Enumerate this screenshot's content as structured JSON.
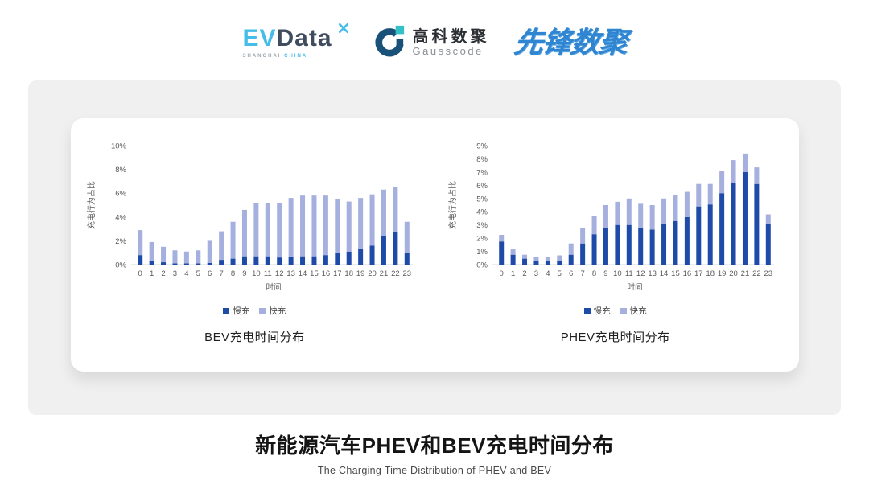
{
  "header": {
    "evdata": {
      "ev": "EV",
      "data": "Data",
      "sub_left": "SHANGHAI",
      "sub_right": "CHINA",
      "accent_color": "#45BDE8",
      "text_color": "#3E4C5E"
    },
    "gausscode": {
      "cn": "高科数聚",
      "en": "Gausscode",
      "ring_color": "#1A5178",
      "square_color": "#33C1C6"
    },
    "xianfeng": {
      "text": "先锋数聚",
      "color": "#2F85D2"
    }
  },
  "chart_data": [
    {
      "type": "bar",
      "stacked": true,
      "title": "BEV充电时间分布",
      "xlabel": "时间",
      "ylabel": "充电行为占比",
      "ylim": [
        0,
        10
      ],
      "ytick_step": 2,
      "grid": false,
      "legend_position": "bottom",
      "categories": [
        "0",
        "1",
        "2",
        "3",
        "4",
        "5",
        "6",
        "7",
        "8",
        "9",
        "10",
        "11",
        "12",
        "13",
        "14",
        "15",
        "16",
        "17",
        "18",
        "19",
        "20",
        "21",
        "22",
        "23"
      ],
      "series": [
        {
          "name": "慢充",
          "color": "#1F4BA8",
          "values": [
            0.8,
            0.35,
            0.2,
            0.1,
            0.1,
            0.1,
            0.15,
            0.4,
            0.5,
            0.7,
            0.7,
            0.7,
            0.6,
            0.65,
            0.7,
            0.7,
            0.8,
            1.0,
            1.1,
            1.3,
            1.6,
            2.4,
            2.75,
            1.0
          ]
        },
        {
          "name": "快充",
          "color": "#A6B0DE",
          "values": [
            2.1,
            1.55,
            1.3,
            1.1,
            1.0,
            1.1,
            1.85,
            2.4,
            3.1,
            3.9,
            4.5,
            4.5,
            4.6,
            4.95,
            5.1,
            5.1,
            5.0,
            4.5,
            4.2,
            4.3,
            4.3,
            3.9,
            3.75,
            2.6
          ]
        }
      ]
    },
    {
      "type": "bar",
      "stacked": true,
      "title": "PHEV充电时间分布",
      "xlabel": "时间",
      "ylabel": "充电行为占比",
      "ylim": [
        0,
        9
      ],
      "ytick_step": 1,
      "grid": false,
      "legend_position": "bottom",
      "categories": [
        "0",
        "1",
        "2",
        "3",
        "4",
        "5",
        "6",
        "7",
        "8",
        "9",
        "10",
        "11",
        "12",
        "13",
        "14",
        "15",
        "16",
        "17",
        "18",
        "19",
        "20",
        "21",
        "22",
        "23"
      ],
      "series": [
        {
          "name": "慢充",
          "color": "#1F4BA8",
          "values": [
            1.75,
            0.75,
            0.45,
            0.25,
            0.25,
            0.3,
            0.75,
            1.6,
            2.3,
            2.8,
            3.0,
            3.0,
            2.8,
            2.65,
            3.1,
            3.3,
            3.6,
            4.4,
            4.55,
            5.4,
            6.2,
            7.0,
            6.1,
            3.05
          ]
        },
        {
          "name": "快充",
          "color": "#A6B0DE",
          "values": [
            0.5,
            0.4,
            0.3,
            0.3,
            0.3,
            0.4,
            0.85,
            1.15,
            1.35,
            1.7,
            1.75,
            2.0,
            1.8,
            1.85,
            1.9,
            1.95,
            1.9,
            1.7,
            1.55,
            1.7,
            1.7,
            1.4,
            1.25,
            0.75
          ]
        }
      ]
    }
  ],
  "footer": {
    "title": "新能源汽车PHEV和BEV充电时间分布",
    "subtitle": "The Charging Time Distribution of PHEV and BEV"
  }
}
